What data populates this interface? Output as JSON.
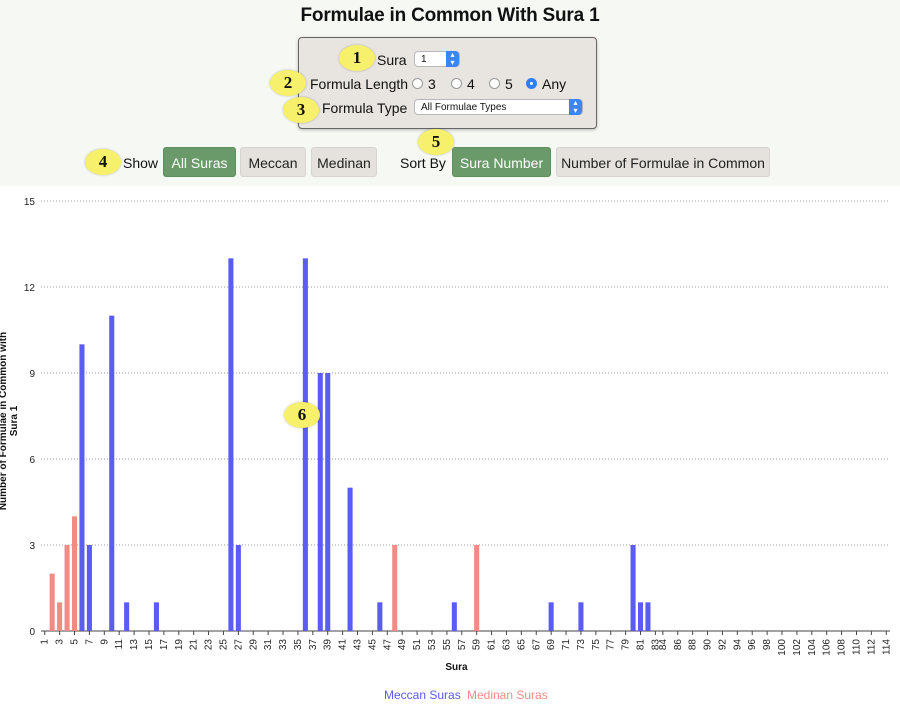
{
  "title": "Formulae in Common With Sura 1",
  "controls": {
    "sura_label": "Sura",
    "sura_value": "1",
    "length_label": "Formula Length",
    "length_options": [
      "3",
      "4",
      "5",
      "Any"
    ],
    "length_selected": "Any",
    "type_label": "Formula Type",
    "type_value": "All Formulae Types"
  },
  "show": {
    "label": "Show",
    "options": [
      "All Suras",
      "Meccan",
      "Medinan"
    ],
    "selected": "All Suras"
  },
  "sort": {
    "label": "Sort By",
    "options": [
      "Sura Number",
      "Number of Formulae in Common"
    ],
    "selected": "Sura Number"
  },
  "badges": [
    "1",
    "2",
    "3",
    "4",
    "5",
    "6"
  ],
  "colors": {
    "meccan": "#5b5bf5",
    "medinan": "#f28b85",
    "active_button": "#6a9a6a"
  },
  "chart_data": {
    "type": "bar",
    "xlabel": "Sura",
    "ylabel": "Number of Formulae in Common with Sura 1",
    "ylim": [
      0,
      15
    ],
    "yticks": [
      0,
      3,
      6,
      9,
      12,
      15
    ],
    "x_range": [
      1,
      114
    ],
    "xticks": [
      1,
      3,
      5,
      7,
      9,
      11,
      13,
      15,
      17,
      19,
      21,
      23,
      25,
      27,
      29,
      31,
      33,
      35,
      37,
      39,
      41,
      43,
      45,
      47,
      49,
      51,
      53,
      55,
      57,
      59,
      61,
      63,
      65,
      67,
      69,
      71,
      73,
      75,
      77,
      79,
      81,
      83,
      84,
      86,
      88,
      90,
      92,
      94,
      96,
      98,
      100,
      102,
      104,
      106,
      108,
      110,
      112,
      114
    ],
    "grid": "horizontal dotted",
    "legend_position": "bottom",
    "series": [
      {
        "name": "Meccan Suras",
        "color": "#5b5bf5",
        "x": [
          6,
          7,
          10,
          12,
          16,
          26,
          27,
          36,
          38,
          39,
          42,
          46,
          56,
          69,
          73,
          80,
          81,
          82
        ],
        "values": [
          10,
          3,
          11,
          1,
          1,
          13,
          3,
          13,
          9,
          9,
          5,
          1,
          1,
          1,
          1,
          3,
          1,
          1
        ]
      },
      {
        "name": "Medinan Suras",
        "color": "#f28b85",
        "x": [
          2,
          3,
          4,
          5,
          48,
          59
        ],
        "values": [
          2,
          1,
          3,
          4,
          3,
          3
        ]
      }
    ]
  }
}
